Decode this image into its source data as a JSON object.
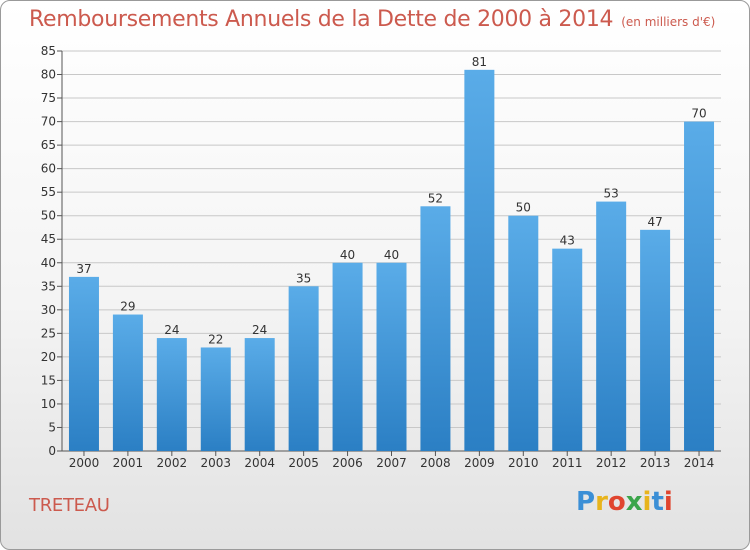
{
  "header": {
    "title": "Remboursements Annuels de la Dette de 2000 à 2014",
    "unit": "(en milliers d'€)"
  },
  "commune": "TRETEAU",
  "logo": {
    "text": "Proxiti",
    "letters": [
      {
        "ch": "P",
        "color": "#3b8fd6"
      },
      {
        "ch": "r",
        "color": "#e8b41c"
      },
      {
        "ch": "o",
        "color": "#e0452f"
      },
      {
        "ch": "x",
        "color": "#3ba54a"
      },
      {
        "ch": "i",
        "color": "#e8b41c"
      },
      {
        "ch": "t",
        "color": "#3b8fd6"
      },
      {
        "ch": "i",
        "color": "#e0452f"
      }
    ]
  },
  "colors": {
    "title": "#cc5a4e",
    "bar_top": "#5aace8",
    "bar_bottom": "#2b7fc4",
    "grid": "#c8c8c8"
  },
  "chart_data": {
    "type": "bar",
    "title": "Remboursements Annuels de la Dette de 2000 à 2014",
    "xlabel": "",
    "ylabel": "",
    "categories": [
      "2000",
      "2001",
      "2002",
      "2003",
      "2004",
      "2005",
      "2006",
      "2007",
      "2008",
      "2009",
      "2010",
      "2011",
      "2012",
      "2013",
      "2014"
    ],
    "values": [
      37,
      29,
      24,
      22,
      24,
      35,
      40,
      40,
      52,
      81,
      50,
      43,
      53,
      47,
      70
    ],
    "ylim": [
      0,
      85
    ],
    "yticks": [
      0,
      5,
      10,
      15,
      20,
      25,
      30,
      35,
      40,
      45,
      50,
      55,
      60,
      65,
      70,
      75,
      80,
      85
    ],
    "grid": true
  }
}
